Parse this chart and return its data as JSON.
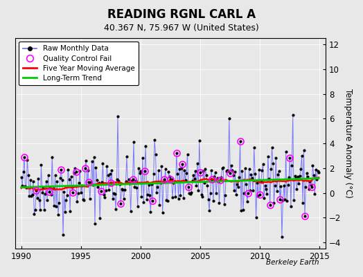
{
  "title": "READING RGNL CARL A",
  "subtitle": "40.367 N, 75.967 W (United States)",
  "ylabel": "Temperature Anomaly (°C)",
  "watermark": "Berkeley Earth",
  "xlim": [
    1989.5,
    2015.5
  ],
  "ylim": [
    -4.5,
    12.5
  ],
  "yticks": [
    -4,
    -2,
    0,
    2,
    4,
    6,
    8,
    10,
    12
  ],
  "xticks": [
    1990,
    1995,
    2000,
    2005,
    2010,
    2015
  ],
  "bg_color": "#e8e8e8",
  "plot_bg_color": "#e8e8e8",
  "raw_line_color": "#6666ff",
  "raw_dot_color": "#000000",
  "ma_color": "#ff0000",
  "trend_color": "#00cc00",
  "qc_color": "#ff00ff",
  "legend_labels": [
    "Raw Monthly Data",
    "Quality Control Fail",
    "Five Year Moving Average",
    "Long-Term Trend"
  ],
  "seed": 42
}
